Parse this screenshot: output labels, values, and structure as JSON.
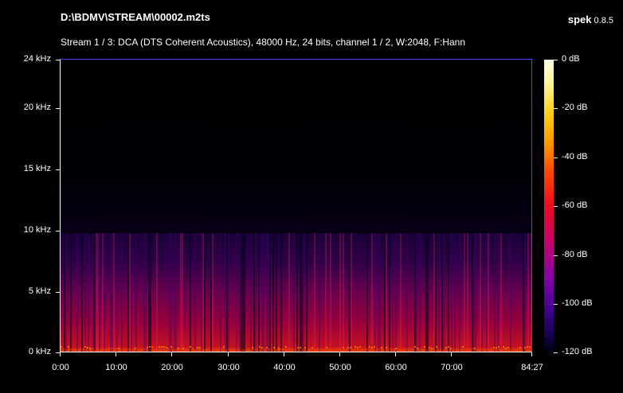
{
  "header": {
    "file_path": "D:\\BDMV\\STREAM\\00002.m2ts",
    "app_name": "spek",
    "app_version": "0.8.5",
    "stream_info": "Stream 1 / 3: DCA (DTS Coherent Acoustics), 48000 Hz, 24 bits, channel 1 / 2, W:2048, F:Hann"
  },
  "y_axis": {
    "labels": [
      "24 kHz",
      "20 kHz",
      "15 kHz",
      "10 kHz",
      "5 kHz",
      "0 kHz"
    ]
  },
  "x_axis": {
    "labels": [
      "0:00",
      "10:00",
      "20:00",
      "30:00",
      "40:00",
      "50:00",
      "60:00",
      "70:00",
      "84:27"
    ]
  },
  "colorbar": {
    "labels": [
      "0 dB",
      "-20 dB",
      "-40 dB",
      "-60 dB",
      "-80 dB",
      "-100 dB",
      "-120 dB"
    ]
  },
  "spectrogram": {
    "max_frequency_khz": 24,
    "content_cutoff_khz": 9.8,
    "duration": "84:27"
  }
}
